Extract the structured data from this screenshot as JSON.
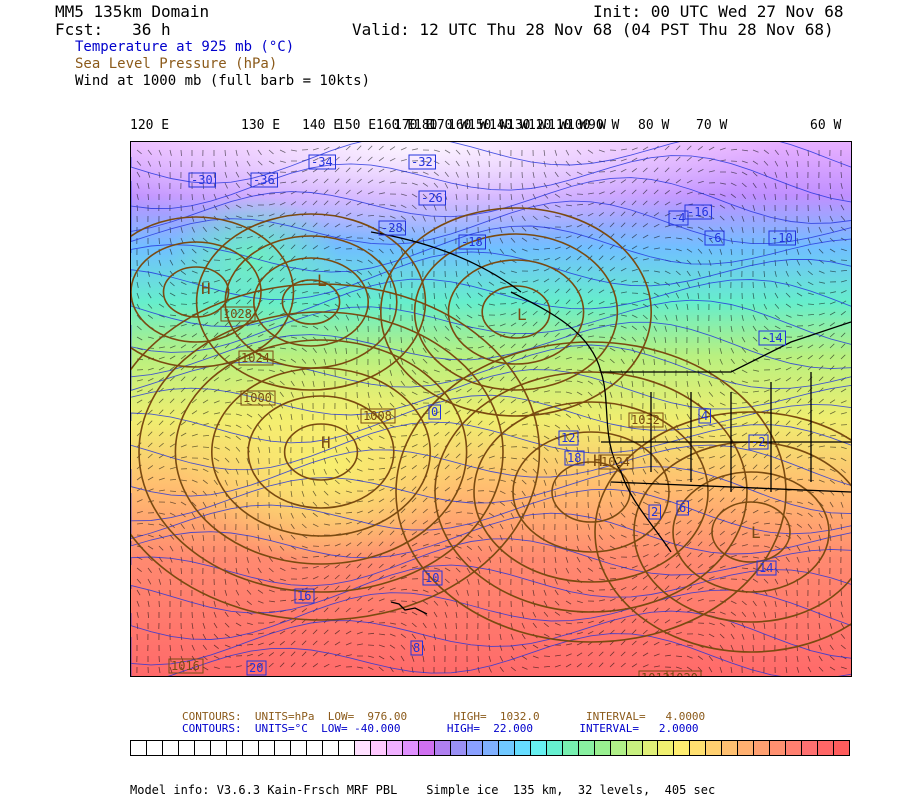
{
  "header": {
    "model_domain": "MM5 135km Domain",
    "forecast": "Fcst:   36 h",
    "init": "Init: 00 UTC Wed 27 Nov 68",
    "valid": "Valid: 12 UTC Thu 28 Nov 68 (04 PST Thu 28 Nov 68)",
    "field_temperature": "Temperature at 925 mb (°C)",
    "field_pressure": "Sea Level Pressure (hPa)",
    "field_wind": "Wind at 1000 mb (full barb = 10kts)"
  },
  "colors": {
    "temperature_text": "#0000cc",
    "pressure_text": "#8b5a1a",
    "isobar": "#7a4a10",
    "isotherm": "#2233dd"
  },
  "longitude_labels": [
    "120 E",
    "130 E",
    "140 E",
    "150 E",
    "160 E",
    "170 E",
    "180",
    "170 W",
    "160 W",
    "150 W",
    "140 W",
    "130 W",
    "120 W",
    "110 W",
    "100 W",
    "90 W",
    "80 W",
    "70 W",
    "60 W"
  ],
  "map_labels": {
    "pressure_centers": [
      "L",
      "H",
      "L",
      "H",
      "L",
      "H"
    ],
    "pressure_values": [
      "1028",
      "1024",
      "1000",
      "1008",
      "1032",
      "1024",
      "1012",
      "1020",
      "1016"
    ],
    "temperature_values": [
      "-30",
      "-36",
      "-34",
      "-32",
      "-28",
      "-26",
      "-18",
      "-16",
      "-14",
      "-10",
      "-6",
      "-4",
      "-2",
      "0",
      "2",
      "4",
      "6",
      "8",
      "10",
      "12",
      "14",
      "16",
      "18",
      "20"
    ]
  },
  "contours": {
    "pressure": "CONTOURS:  UNITS=hPa  LOW=  976.00       HIGH=  1032.0       INTERVAL=   4.0000",
    "temperature": "CONTOURS:  UNITS=°C  LOW= -40.000       HIGH=  22.000       INTERVAL=   2.0000"
  },
  "colorbar": [
    "#ffffff",
    "#ffffff",
    "#ffffff",
    "#ffffff",
    "#ffffff",
    "#ffffff",
    "#ffffff",
    "#ffffff",
    "#ffffff",
    "#ffffff",
    "#ffffff",
    "#ffffff",
    "#ffffff",
    "#ffffff",
    "#ffe0ff",
    "#ffc8ff",
    "#f0b0ff",
    "#e090ff",
    "#d070f0",
    "#b080f0",
    "#9a90f5",
    "#8aa0ff",
    "#7fb0ff",
    "#70c8ff",
    "#66ddff",
    "#66f0f0",
    "#66f0d0",
    "#77f0b0",
    "#88f0a0",
    "#99f090",
    "#b0f088",
    "#c8f080",
    "#e0f078",
    "#f0f070",
    "#ffee70",
    "#ffe070",
    "#ffd070",
    "#ffc070",
    "#ffb070",
    "#ffa070",
    "#ff9070",
    "#ff8070",
    "#ff7070",
    "#ff6666",
    "#ff5c5c"
  ],
  "footer": "Model info: V3.6.3 Kain-Frsch MRF PBL    Simple ice  135 km,  32 levels,  405 sec"
}
